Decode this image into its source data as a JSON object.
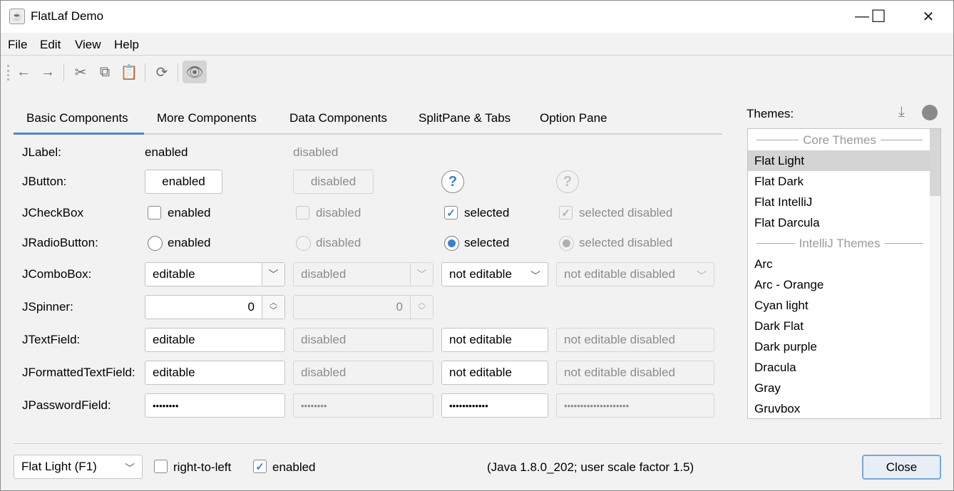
{
  "window": {
    "title": "FlatLaf Demo",
    "controls": {
      "minimize": "—",
      "maximize": "☐",
      "close": "✕"
    }
  },
  "menu": [
    "File",
    "Edit",
    "View",
    "Help"
  ],
  "toolbar": {
    "icons": [
      "arrow-left-icon",
      "arrow-right-icon",
      "cut-icon",
      "copy-icon",
      "paste-icon",
      "refresh-icon",
      "eye-icon"
    ],
    "glyphs": [
      "←",
      "→",
      "✂",
      "⧉",
      "📋",
      "⟳",
      "👁"
    ]
  },
  "tabs": {
    "items": [
      "Basic Components",
      "More Components",
      "Data Components",
      "SplitPane & Tabs",
      "Option Pane"
    ],
    "selected": 0,
    "accent": "#4a88c7"
  },
  "rows": {
    "label": {
      "name": "JLabel:",
      "cells": [
        "enabled",
        "disabled"
      ]
    },
    "button": {
      "name": "JButton:",
      "cells": [
        "enabled",
        "disabled",
        "?",
        "?"
      ]
    },
    "checkbox": {
      "name": "JCheckBox",
      "cells": [
        "enabled",
        "disabled",
        "selected",
        "selected disabled"
      ]
    },
    "radio": {
      "name": "JRadioButton:",
      "cells": [
        "enabled",
        "disabled",
        "selected",
        "selected disabled"
      ]
    },
    "combo": {
      "name": "JComboBox:",
      "cells": [
        "editable",
        "disabled",
        "not editable",
        "not editable disabled"
      ]
    },
    "spinner": {
      "name": "JSpinner:",
      "cells": [
        "0",
        "0"
      ]
    },
    "textfield": {
      "name": "JTextField:",
      "cells": [
        "editable",
        "disabled",
        "not editable",
        "not editable disabled"
      ]
    },
    "formatted": {
      "name": "JFormattedTextField:",
      "cells": [
        "editable",
        "disabled",
        "not editable",
        "not editable disabled"
      ]
    },
    "password": {
      "name": "JPasswordField:",
      "cells": [
        "••••••••",
        "••••••••",
        "••••••••••••",
        "••••••••••••••••••••"
      ]
    }
  },
  "themes": {
    "label": "Themes:",
    "items": [
      {
        "header": "Core Themes"
      },
      {
        "name": "Flat Light",
        "selected": true
      },
      {
        "name": "Flat Dark"
      },
      {
        "name": "Flat IntelliJ"
      },
      {
        "name": "Flat Darcula"
      },
      {
        "header": "IntelliJ Themes"
      },
      {
        "name": "Arc"
      },
      {
        "name": "Arc - Orange"
      },
      {
        "name": "Cyan light"
      },
      {
        "name": "Dark Flat"
      },
      {
        "name": "Dark purple"
      },
      {
        "name": "Dracula"
      },
      {
        "name": "Gray"
      },
      {
        "name": "Gruvbox"
      }
    ]
  },
  "bottom": {
    "theme_combo": "Flat Light (F1)",
    "rtl_label": "right-to-left",
    "rtl_checked": false,
    "enabled_label": "enabled",
    "enabled_checked": true,
    "info": "(Java 1.8.0_202;  user scale factor 1.5)",
    "close_label": "Close"
  }
}
